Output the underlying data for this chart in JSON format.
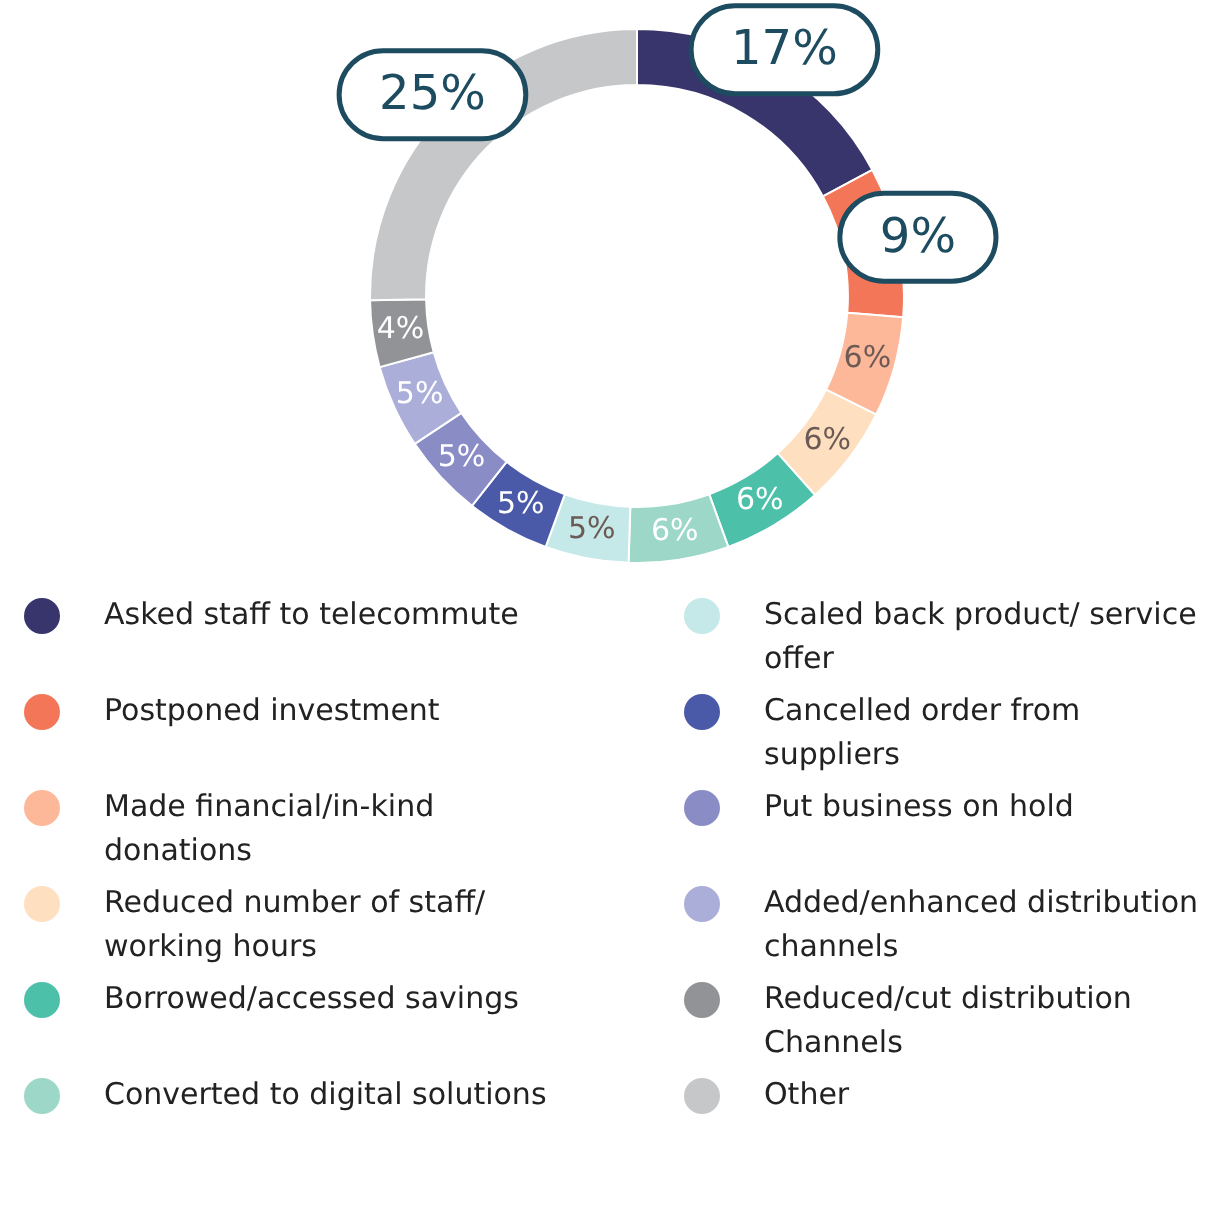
{
  "chart_data": {
    "type": "donut",
    "categories": [
      "Asked staff to telecommute",
      "Postponed investment",
      "Made financial/in-kind donations",
      "Reduced number of staff/ working hours",
      "Borrowed/accessed savings",
      "Converted to digital solutions",
      "Scaled back product/ service offer",
      "Cancelled order from suppliers",
      "Put business on hold",
      "Added/enhanced distribution channels",
      "Reduced/cut distribution Channels",
      "Other"
    ],
    "values": [
      17,
      9,
      6,
      6,
      6,
      6,
      5,
      5,
      5,
      5,
      4,
      25
    ],
    "colors": [
      "#37356c",
      "#f37659",
      "#fdb89a",
      "#fedfc0",
      "#4dc0aa",
      "#9dd7c7",
      "#c5e8e8",
      "#4a5aa8",
      "#8a8cc6",
      "#abaed9",
      "#929396",
      "#c6c7c9"
    ],
    "value_labels": [
      "17%",
      "9%",
      "6%",
      "6%",
      "6%",
      "6%",
      "5%",
      "5%",
      "5%",
      "5%",
      "4%",
      "25%"
    ],
    "legend": "bottom"
  }
}
